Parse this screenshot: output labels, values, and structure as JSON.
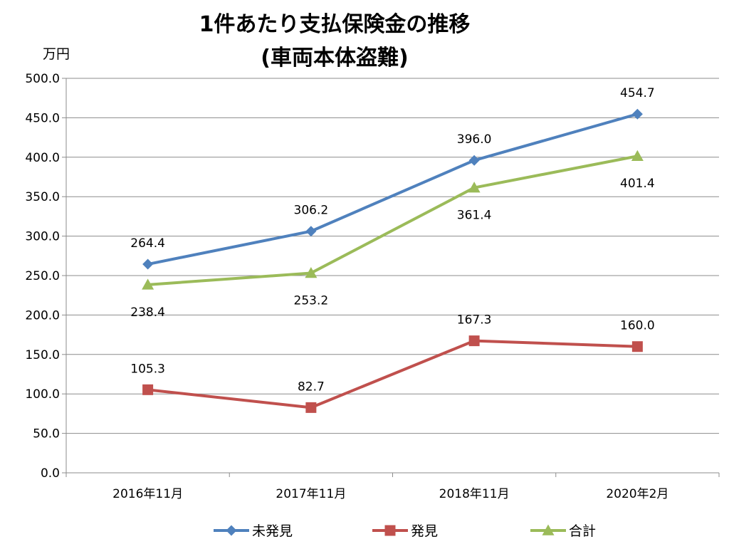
{
  "chart_data": {
    "type": "line",
    "title_lines": [
      "1件あたり支払保険金の推移",
      "(車両本体盗難)"
    ],
    "ylabel": "万円",
    "xlabel": "",
    "categories": [
      "2016年11月",
      "2017年11月",
      "2018年11月",
      "2020年2月"
    ],
    "ylim": [
      0,
      500
    ],
    "ytick_step": 50,
    "ytick_labels": [
      "0.0",
      "50.0",
      "100.0",
      "150.0",
      "200.0",
      "250.0",
      "300.0",
      "350.0",
      "400.0",
      "450.0",
      "500.0"
    ],
    "grid": "horizontal",
    "legend_position": "bottom",
    "series": [
      {
        "name": "未発見",
        "values": [
          264.4,
          306.2,
          396.0,
          454.7
        ],
        "labels": [
          "264.4",
          "306.2",
          "396.0",
          "454.7"
        ],
        "label_side": "above",
        "marker": "diamond",
        "color": "#4F81BD"
      },
      {
        "name": "発見",
        "values": [
          105.3,
          82.7,
          167.3,
          160.0
        ],
        "labels": [
          "105.3",
          "82.7",
          "167.3",
          "160.0"
        ],
        "label_side": "above",
        "marker": "square",
        "color": "#C0504D"
      },
      {
        "name": "合計",
        "values": [
          238.4,
          253.2,
          361.4,
          401.4
        ],
        "labels": [
          "238.4",
          "253.2",
          "361.4",
          "401.4"
        ],
        "label_side": "below",
        "marker": "triangle",
        "color": "#9BBB59"
      }
    ]
  }
}
